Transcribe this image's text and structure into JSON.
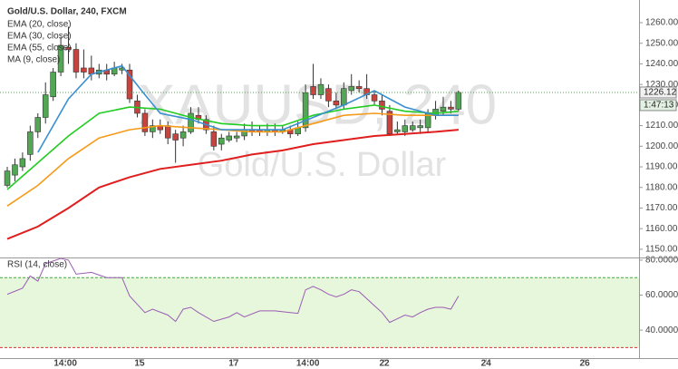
{
  "chart_data": [
    {
      "type": "candlestick",
      "title": "Gold/U.S. Dollar, 240, FXCM",
      "watermark_symbol": "XAUUSD, 240",
      "watermark_name": "Gold/U.S. Dollar",
      "x": [
        0,
        1,
        2,
        3,
        4,
        5,
        6,
        7,
        8,
        9,
        10,
        11,
        12,
        13,
        14,
        15,
        16,
        17,
        18,
        19,
        20,
        21,
        22,
        23,
        24,
        25,
        26,
        27,
        28,
        29,
        30,
        31,
        32,
        33,
        34,
        35,
        36,
        37,
        38,
        39,
        40,
        41,
        42,
        43,
        44,
        45,
        46,
        47,
        48,
        49,
        50,
        51,
        52,
        53,
        54,
        55,
        56,
        57,
        58,
        59
      ],
      "open": [
        1181,
        1186,
        1190,
        1196,
        1207,
        1214,
        1224,
        1236,
        1248,
        1247,
        1238,
        1238,
        1235,
        1237,
        1235,
        1237,
        1237,
        1222,
        1216,
        1207,
        1210,
        1210,
        1206,
        1204,
        1207,
        1215,
        1213,
        1207,
        1201,
        1203,
        1204,
        1205,
        1208,
        1208,
        1207,
        1208,
        1207,
        1208,
        1206,
        1209,
        1229,
        1225,
        1228,
        1222,
        1220,
        1227,
        1229,
        1228,
        1225,
        1222,
        1217,
        1207,
        1207,
        1208,
        1209,
        1209,
        1215,
        1217,
        1219,
        1218
      ],
      "high": [
        1190,
        1194,
        1197,
        1210,
        1216,
        1231,
        1238,
        1253,
        1258,
        1250,
        1247,
        1244,
        1240,
        1240,
        1241,
        1240,
        1240,
        1225,
        1218,
        1213,
        1213,
        1212,
        1208,
        1210,
        1219,
        1219,
        1215,
        1210,
        1206,
        1207,
        1207,
        1211,
        1212,
        1210,
        1211,
        1211,
        1210,
        1210,
        1212,
        1230,
        1240,
        1233,
        1230,
        1226,
        1231,
        1235,
        1232,
        1235,
        1227,
        1225,
        1220,
        1212,
        1213,
        1212,
        1213,
        1218,
        1222,
        1224,
        1222,
        1227
      ],
      "low": [
        1180,
        1183,
        1188,
        1193,
        1204,
        1211,
        1222,
        1234,
        1240,
        1233,
        1233,
        1232,
        1233,
        1232,
        1234,
        1235,
        1221,
        1214,
        1205,
        1204,
        1206,
        1201,
        1192,
        1200,
        1206,
        1211,
        1206,
        1198,
        1198,
        1202,
        1202,
        1203,
        1205,
        1205,
        1205,
        1205,
        1206,
        1204,
        1205,
        1207,
        1223,
        1223,
        1219,
        1218,
        1218,
        1225,
        1226,
        1223,
        1220,
        1215,
        1205,
        1206,
        1205,
        1207,
        1206,
        1207,
        1213,
        1215,
        1216,
        1217
      ],
      "close": [
        1188,
        1191,
        1194,
        1207,
        1214,
        1225,
        1236,
        1249,
        1247,
        1236,
        1236,
        1235,
        1237,
        1235,
        1238,
        1238,
        1223,
        1216,
        1207,
        1210,
        1208,
        1204,
        1203,
        1207,
        1216,
        1213,
        1208,
        1200,
        1204,
        1205,
        1205,
        1208,
        1207,
        1207,
        1208,
        1207,
        1208,
        1206,
        1209,
        1226,
        1225,
        1230,
        1222,
        1220,
        1228,
        1229,
        1228,
        1225,
        1222,
        1218,
        1206,
        1208,
        1210,
        1210,
        1210,
        1216,
        1218,
        1219,
        1218,
        1226.12
      ],
      "up_color": "#53a653",
      "down_color": "#c8433d",
      "lines": [
        {
          "name": "EMA (20, close)",
          "color": "#22cc22",
          "x": [
            0,
            4,
            8,
            12,
            16,
            20,
            24,
            28,
            32,
            36,
            40,
            44,
            48,
            52,
            56,
            59
          ],
          "values": [
            1179,
            1192,
            1205,
            1216,
            1219,
            1218,
            1214,
            1211,
            1210,
            1210,
            1215,
            1218,
            1220,
            1217,
            1216,
            1217
          ]
        },
        {
          "name": "EMA (30, close)",
          "color": "#f59a1a",
          "x": [
            0,
            4,
            8,
            12,
            16,
            20,
            24,
            28,
            32,
            36,
            40,
            44,
            48,
            52,
            56,
            59
          ],
          "values": [
            1171,
            1181,
            1194,
            1204,
            1208,
            1210,
            1209,
            1208,
            1207,
            1207,
            1211,
            1215,
            1216,
            1215,
            1215,
            1215
          ]
        },
        {
          "name": "EMA (55, close)",
          "color": "#e01e1e",
          "x": [
            0,
            4,
            8,
            12,
            16,
            20,
            24,
            28,
            32,
            36,
            40,
            44,
            48,
            52,
            56,
            59
          ],
          "values": [
            1155,
            1161,
            1170,
            1180,
            1185,
            1189,
            1191,
            1193,
            1196,
            1198,
            1201,
            1203,
            1205,
            1206,
            1207,
            1208
          ]
        },
        {
          "name": "MA (9, close)",
          "color": "#3a8fd0",
          "x": [
            4,
            8,
            11,
            15,
            18,
            20,
            24,
            28,
            32,
            36,
            40,
            44,
            48,
            52,
            56,
            59
          ],
          "values": [
            1197,
            1223,
            1235,
            1239,
            1225,
            1216,
            1213,
            1208,
            1208,
            1208,
            1214,
            1220,
            1227,
            1219,
            1215,
            1215
          ]
        }
      ],
      "last_price": 1226.12,
      "countdown": "1:47:13",
      "xlim": [
        -0.95,
        82.6
      ],
      "ylim": [
        1146,
        1271
      ],
      "yticks": [
        {
          "value": 1150,
          "label": "1150.00"
        },
        {
          "value": 1160,
          "label": "1160.00"
        },
        {
          "value": 1170,
          "label": "1170.00"
        },
        {
          "value": 1180,
          "label": "1180.00"
        },
        {
          "value": 1190,
          "label": "1190.00"
        },
        {
          "value": 1200,
          "label": "1200.00"
        },
        {
          "value": 1210,
          "label": "1210.00"
        },
        {
          "value": 1220,
          "label": "1220.00"
        },
        {
          "value": 1230,
          "label": "1230.00"
        },
        {
          "value": 1240,
          "label": "1240.00"
        },
        {
          "value": 1250,
          "label": "1250.00"
        },
        {
          "value": 1260,
          "label": "1260.00"
        }
      ]
    },
    {
      "type": "line",
      "title": "RSI (14, close)",
      "x": [
        0,
        2,
        3,
        4,
        5,
        7,
        8,
        9,
        11,
        13,
        15,
        16,
        18,
        19,
        21,
        22,
        23,
        24,
        25,
        27,
        29,
        30,
        31,
        33,
        35,
        37,
        38,
        39,
        40,
        41,
        42,
        43,
        44,
        45,
        46,
        47,
        48,
        49,
        50,
        51,
        52,
        53,
        54,
        55,
        56,
        57,
        58,
        59
      ],
      "values": [
        60.5,
        64,
        71,
        68,
        78,
        81,
        80,
        72,
        73,
        70,
        70,
        59.5,
        50,
        52,
        48.6,
        45,
        52,
        53,
        50,
        45,
        47.5,
        50,
        47.5,
        51,
        51,
        50,
        49.6,
        63,
        65,
        63,
        60.5,
        59,
        60.5,
        63,
        62,
        58,
        54,
        50,
        44.4,
        46.5,
        48.6,
        47.5,
        50,
        52,
        53,
        53,
        52,
        59.5
      ],
      "color": "#9b5cb4",
      "band_upper": 70,
      "band_lower": 30,
      "band_color": "#e6f7dc",
      "xlim": [
        -0.95,
        82.6
      ],
      "ylim": [
        24,
        81
      ],
      "yticks": [
        {
          "value": 40,
          "label": "40.0000"
        },
        {
          "value": 60,
          "label": "60.0000"
        },
        {
          "value": 80,
          "label": "80.0000"
        }
      ],
      "xticks": [
        {
          "value": 7.6,
          "label": "14:00"
        },
        {
          "value": 17.3,
          "label": "15"
        },
        {
          "value": 29.6,
          "label": "17"
        },
        {
          "value": 39.3,
          "label": "14:00"
        },
        {
          "value": 49.3,
          "label": "22"
        },
        {
          "value": 62.6,
          "label": "24"
        },
        {
          "value": 75.5,
          "label": "26"
        }
      ]
    }
  ]
}
